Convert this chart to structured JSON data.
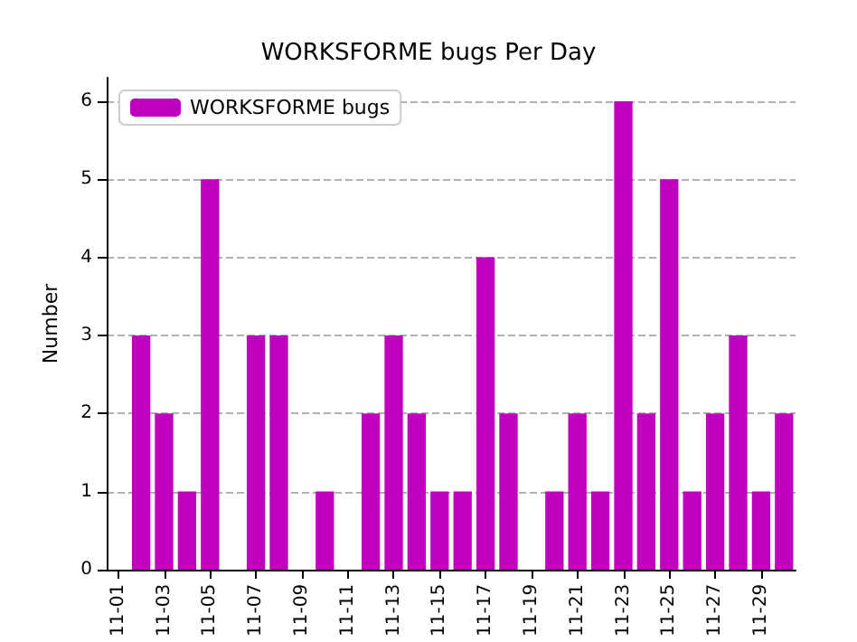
{
  "chart_data": {
    "type": "bar",
    "title": "WORKSFORME bugs Per Day",
    "ylabel": "Number",
    "categories": [
      "11-01",
      null,
      "11-03",
      null,
      "11-05",
      null,
      "11-07",
      null,
      "11-09",
      null,
      "11-11",
      null,
      "11-13",
      null,
      "11-15",
      null,
      "11-17",
      null,
      "11-19",
      null,
      "11-21",
      null,
      "11-23",
      null,
      "11-25",
      null,
      "11-27",
      null,
      "11-29",
      null
    ],
    "series": [
      {
        "name": "WORKSFORME bugs",
        "color": "#bf00bf",
        "values": [
          0,
          3,
          2,
          1,
          5,
          0,
          3,
          3,
          0,
          1,
          0,
          2,
          3,
          2,
          1,
          1,
          4,
          2,
          0,
          1,
          2,
          1,
          6,
          2,
          5,
          1,
          2,
          3,
          1,
          2
        ]
      }
    ],
    "ylim": [
      0,
      6.3
    ],
    "yticks": [
      0,
      1,
      2,
      3,
      4,
      5,
      6
    ],
    "grid": "y",
    "legend": "top left"
  }
}
